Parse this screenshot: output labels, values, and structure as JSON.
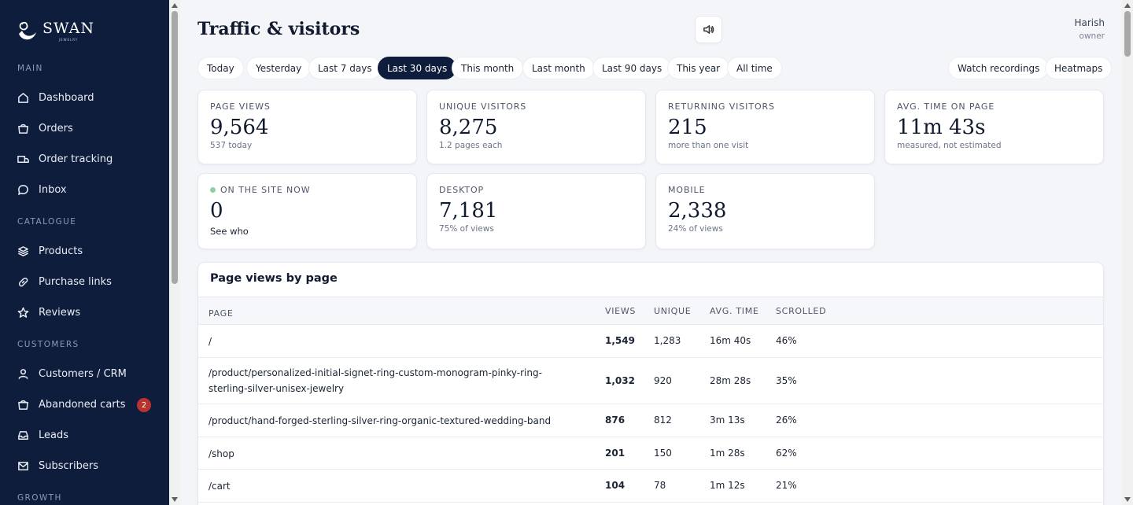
{
  "brand": {
    "name": "SWAN",
    "sub": "JEWELRY"
  },
  "sidebar": {
    "sections": [
      {
        "title": "MAIN",
        "items": [
          {
            "label": "Dashboard",
            "icon": "home-icon"
          },
          {
            "label": "Orders",
            "icon": "bag-icon"
          },
          {
            "label": "Order tracking",
            "icon": "truck-icon"
          },
          {
            "label": "Inbox",
            "icon": "chat-icon"
          }
        ]
      },
      {
        "title": "CATALOGUE",
        "items": [
          {
            "label": "Products",
            "icon": "layers-icon"
          },
          {
            "label": "Purchase links",
            "icon": "link-icon"
          },
          {
            "label": "Reviews",
            "icon": "star-icon"
          }
        ]
      },
      {
        "title": "CUSTOMERS",
        "items": [
          {
            "label": "Customers / CRM",
            "icon": "user-icon"
          },
          {
            "label": "Abandoned carts",
            "icon": "cart-icon",
            "badge": "2"
          },
          {
            "label": "Leads",
            "icon": "inbox-icon"
          },
          {
            "label": "Subscribers",
            "icon": "mail-icon"
          }
        ]
      },
      {
        "title": "GROWTH",
        "items": []
      }
    ]
  },
  "header": {
    "title": "Traffic & visitors",
    "sound_icon": "speaker-icon",
    "user_name": "Harish",
    "user_role": "owner"
  },
  "ranges": [
    "Today",
    "Yesterday",
    "Last 7 days",
    "Last 30 days",
    "This month",
    "Last month",
    "Last 90 days",
    "This year",
    "All time"
  ],
  "active_range": "Last 30 days",
  "actions": [
    "Watch recordings",
    "Heatmaps"
  ],
  "stats": {
    "page_views": {
      "label": "PAGE VIEWS",
      "value": "9,564",
      "sub": "537 today"
    },
    "unique_visitors": {
      "label": "UNIQUE VISITORS",
      "value": "8,275",
      "sub": "1.2 pages each"
    },
    "returning_visitors": {
      "label": "RETURNING VISITORS",
      "value": "215",
      "sub": "more than one visit"
    },
    "avg_time": {
      "label": "AVG. TIME ON PAGE",
      "value": "11m 43s",
      "sub": "measured, not estimated"
    },
    "on_site": {
      "label": "ON THE SITE NOW",
      "value": "0",
      "link": "See who"
    },
    "desktop": {
      "label": "DESKTOP",
      "value": "7,181",
      "sub": "75% of views"
    },
    "mobile": {
      "label": "MOBILE",
      "value": "2,338",
      "sub": "24% of views"
    }
  },
  "table": {
    "title": "Page views by page",
    "headers": {
      "page": "PAGE",
      "views": "VIEWS",
      "unique": "UNIQUE",
      "avg": "AVG. TIME",
      "scrolled": "SCROLLED"
    },
    "rows": [
      {
        "page": "/",
        "views": "1,549",
        "unique": "1,283",
        "avg": "16m 40s",
        "scrolled": "46%"
      },
      {
        "page": "/product/personalized-initial-signet-ring-custom-monogram-pinky-ring-sterling-silver-unisex-jewelry",
        "views": "1,032",
        "unique": "920",
        "avg": "28m 28s",
        "scrolled": "35%"
      },
      {
        "page": "/product/hand-forged-sterling-silver-ring-organic-textured-wedding-band",
        "views": "876",
        "unique": "812",
        "avg": "3m 13s",
        "scrolled": "26%"
      },
      {
        "page": "/shop",
        "views": "201",
        "unique": "150",
        "avg": "1m 28s",
        "scrolled": "62%"
      },
      {
        "page": "/cart",
        "views": "104",
        "unique": "78",
        "avg": "1m 12s",
        "scrolled": "21%"
      }
    ]
  },
  "colors": {
    "sidebar_bg": "#0f1d3d",
    "active_pill": "#0f1d3d",
    "badge": "#b8322e",
    "live_dot": "#8fcfa6"
  }
}
